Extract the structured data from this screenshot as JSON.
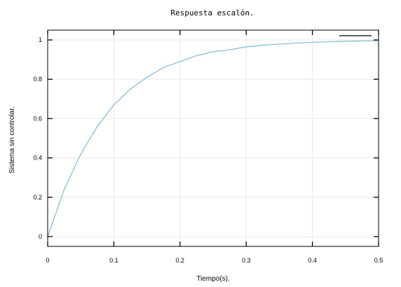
{
  "chart_data": {
    "type": "line",
    "title": "Respuesta escalón.",
    "xlabel": "Tiempo(s).",
    "ylabel": "Sistema sin controlar.",
    "xlim": [
      0,
      0.5
    ],
    "ylim": [
      -0.05,
      1.05
    ],
    "xticks": [
      0,
      0.1,
      0.2,
      0.3,
      0.4,
      0.5
    ],
    "xtick_labels": [
      "0",
      "0.1",
      "0.2",
      "0.3",
      "0.4",
      "0.5"
    ],
    "yticks": [
      0,
      0.2,
      0.4,
      0.6,
      0.8,
      1
    ],
    "ytick_labels": [
      "0",
      "0.2",
      "0.4",
      "0.6",
      "0.8",
      "1"
    ],
    "grid": true,
    "legend": "top-right",
    "series": [
      {
        "color": "#7fb6d9",
        "x": [
          0,
          0.025,
          0.05,
          0.075,
          0.1,
          0.125,
          0.15,
          0.175,
          0.2,
          0.225,
          0.25,
          0.275,
          0.3,
          0.325,
          0.35,
          0.375,
          0.4,
          0.425,
          0.45,
          0.475,
          0.5
        ],
        "y": [
          0,
          0.24,
          0.42,
          0.56,
          0.67,
          0.75,
          0.81,
          0.86,
          0.89,
          0.92,
          0.94,
          0.95,
          0.965,
          0.973,
          0.979,
          0.984,
          0.988,
          0.991,
          0.993,
          0.995,
          0.996
        ]
      }
    ]
  }
}
